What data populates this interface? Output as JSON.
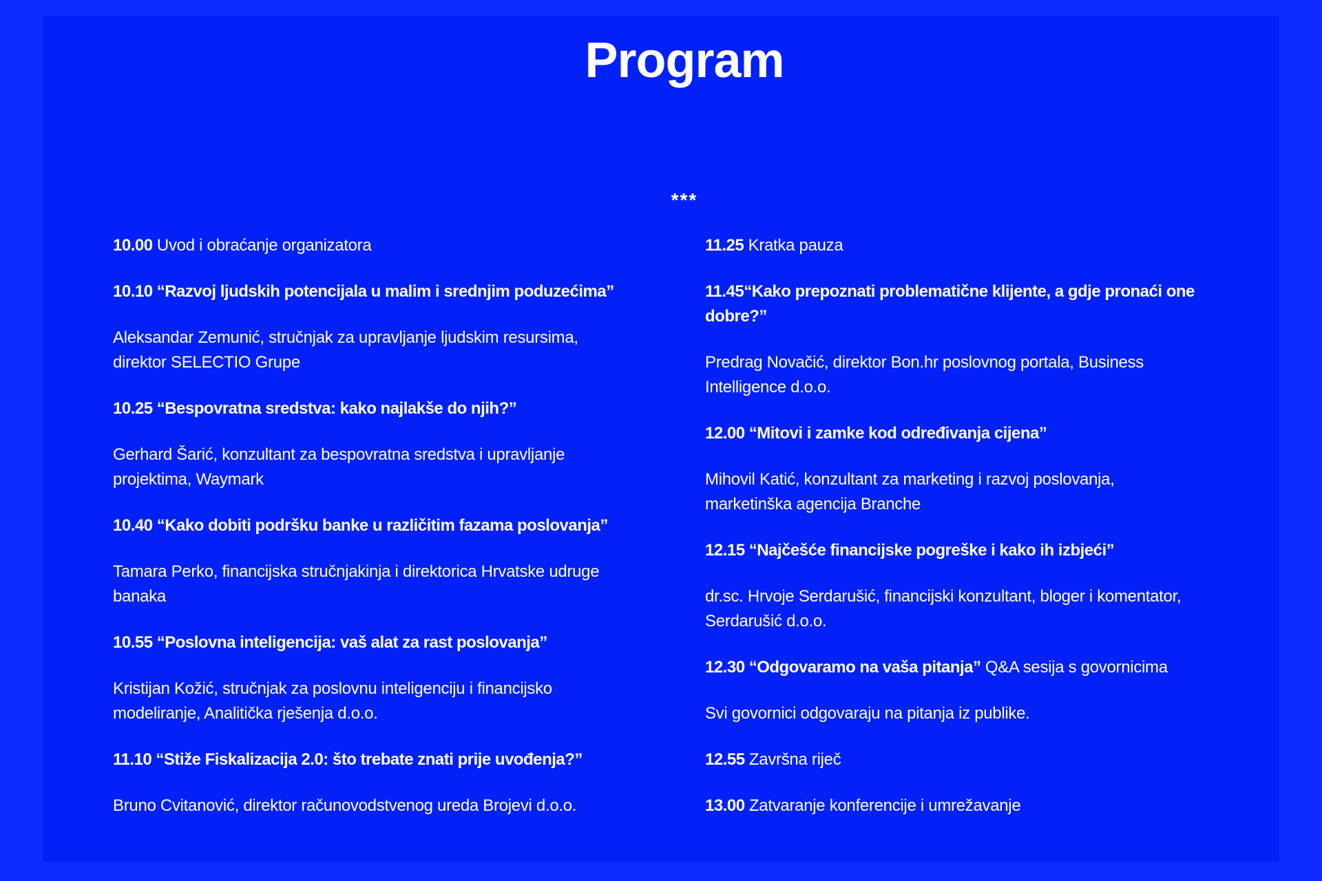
{
  "page": {
    "title": "Program",
    "separator": "***"
  },
  "colors": {
    "outer_bg": "#0b2bff",
    "panel_bg": "#0221f6",
    "text": "#ffffff"
  },
  "schedule": {
    "columns": [
      {
        "blocks": [
          {
            "bold": "10.00",
            "text": " Uvod i obraćanje organizatora"
          },
          {
            "bold": "10.10 “Razvoj ljudskih potencijala u malim i srednjim poduzećima”",
            "text": ""
          },
          {
            "bold": "",
            "text": "Aleksandar Zemunić, stručnjak za upravljanje ljudskim resursima,\ndirektor SELECTIO Grupe"
          },
          {
            "bold": "10.25 “Bespovratna sredstva: kako najlakše do njih?”",
            "text": ""
          },
          {
            "bold": "",
            "text": "Gerhard Šarić, konzultant za bespovratna sredstva i upravljanje\nprojektima, Waymark"
          },
          {
            "bold": "10.40 “Kako dobiti podršku banke u različitim fazama poslovanja”",
            "text": ""
          },
          {
            "bold": "",
            "text": "Tamara Perko, financijska stručnjakinja i direktorica Hrvatske udruge\nbanaka"
          },
          {
            "bold": "10.55 “Poslovna inteligencija: vaš alat za rast poslovanja”",
            "text": ""
          },
          {
            "bold": "",
            "text": "Kristijan Kožić, stručnjak za poslovnu inteligenciju i financijsko\nmodeliranje, Analitička rješenja d.o.o."
          },
          {
            "bold": "11.10 “Stiže Fiskalizacija 2.0: što trebate znati prije uvođenja?”",
            "text": ""
          },
          {
            "bold": "",
            "text": "Bruno Cvitanović, direktor računovodstvenog ureda Brojevi d.o.o."
          }
        ]
      },
      {
        "blocks": [
          {
            "bold": "11.25",
            "text": " Kratka pauza"
          },
          {
            "bold": "11.45“Kako prepoznati problematične klijente, a gdje pronaći one\ndobre?”",
            "text": ""
          },
          {
            "bold": "",
            "text": "Predrag Novačić, direktor Bon.hr poslovnog portala, Business\nIntelligence d.o.o."
          },
          {
            "bold": "12.00 “Mitovi i zamke kod određivanja cijena”",
            "text": ""
          },
          {
            "bold": "",
            "text": "Mihovil Katić, konzultant za marketing i razvoj poslovanja,\nmarketinška agencija Branche"
          },
          {
            "bold": "12.15 “Najčešće financijske pogreške i kako ih izbjeći”",
            "text": ""
          },
          {
            "bold": "",
            "text": "dr.sc. Hrvoje Serdarušić, financijski konzultant, bloger i komentator,\nSerdarušić d.o.o."
          },
          {
            "bold": "12.30 “Odgovaramo na vaša pitanja”",
            "text": " Q&A sesija s govornicima"
          },
          {
            "bold": "",
            "text": "Svi govornici odgovaraju na pitanja iz publike."
          },
          {
            "bold": "12.55",
            "text": " Završna riječ"
          },
          {
            "bold": "13.00",
            "text": " Zatvaranje konferencije i umrežavanje"
          }
        ]
      }
    ]
  }
}
